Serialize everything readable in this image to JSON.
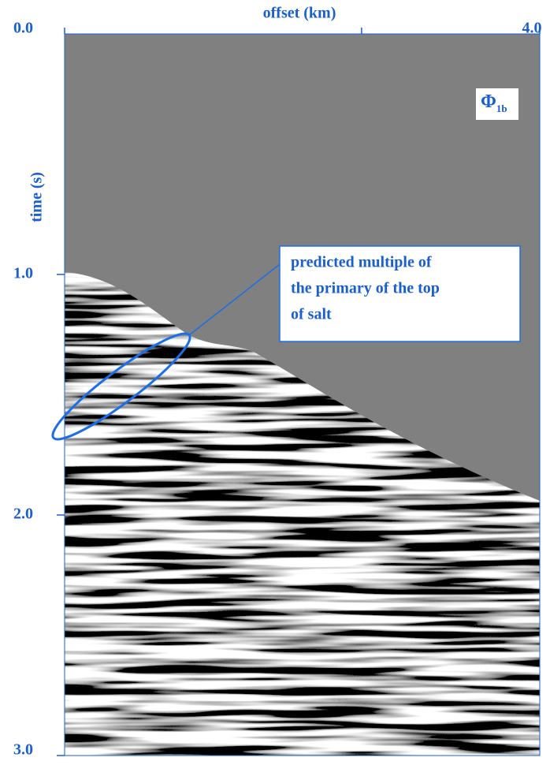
{
  "chart_data": {
    "type": "seismic",
    "xlabel": "offset (km)",
    "ylabel": "time (s)",
    "xlim": [
      0,
      4
    ],
    "ylim": [
      3,
      0
    ],
    "xticks": [
      {
        "value": 0,
        "label": "0.0"
      },
      {
        "value": 2.5,
        "label": null
      },
      {
        "value": 4,
        "label": "4.0"
      }
    ],
    "yticks": [
      {
        "value": 1,
        "label": "1.0"
      },
      {
        "value": 2,
        "label": "2.0"
      },
      {
        "value": 3,
        "label": "3.0"
      }
    ],
    "color": "#1a5fd0",
    "panel_label": {
      "symbol": "Φ",
      "subscript": "1b"
    },
    "annotation": {
      "lines": [
        "predicted multiple of",
        "the  primary of the top",
        "of salt"
      ]
    }
  }
}
